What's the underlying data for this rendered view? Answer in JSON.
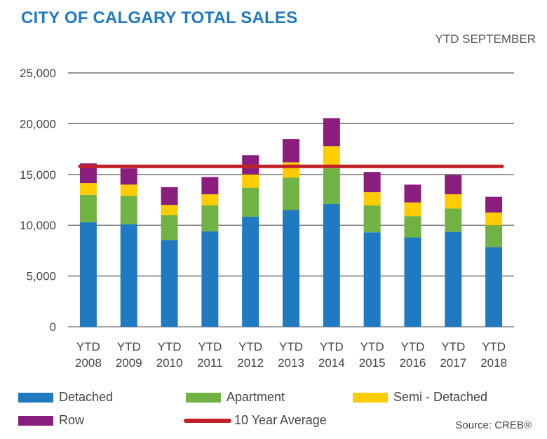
{
  "chart_data": {
    "type": "bar",
    "stacked": true,
    "title": "CITY OF CALGARY TOTAL SALES",
    "subtitle": "YTD  SEPTEMBER",
    "source": "Source: CREB®",
    "ylim": [
      0,
      25000
    ],
    "yticks": [
      {
        "value": 0,
        "label": "0"
      },
      {
        "value": 5000,
        "label": "5,000"
      },
      {
        "value": 10000,
        "label": "10,000"
      },
      {
        "value": 15000,
        "label": "15,000"
      },
      {
        "value": 20000,
        "label": "20,000"
      },
      {
        "value": 25000,
        "label": "25,000"
      }
    ],
    "grid": true,
    "legend_position": "bottom",
    "categories": [
      [
        "YTD",
        "2008"
      ],
      [
        "YTD",
        "2009"
      ],
      [
        "YTD",
        "2010"
      ],
      [
        "YTD",
        "2011"
      ],
      [
        "YTD",
        "2012"
      ],
      [
        "YTD",
        "2013"
      ],
      [
        "YTD",
        "2014"
      ],
      [
        "YTD",
        "2015"
      ],
      [
        "YTD",
        "2016"
      ],
      [
        "YTD",
        "2017"
      ],
      [
        "YTD",
        "2018"
      ]
    ],
    "series": [
      {
        "name": "Detached",
        "color": "#1f7ac2",
        "values": [
          10300,
          10100,
          8550,
          9400,
          10850,
          11500,
          12100,
          9300,
          8800,
          9350,
          7850
        ]
      },
      {
        "name": "Apartment",
        "color": "#70b344",
        "values": [
          2700,
          2800,
          2450,
          2550,
          2850,
          3200,
          3500,
          2650,
          2100,
          2300,
          2150
        ]
      },
      {
        "name": "Semi - Detached",
        "color": "#ffcc00",
        "values": [
          1150,
          1100,
          1000,
          1100,
          1300,
          1500,
          2200,
          1300,
          1350,
          1400,
          1250
        ]
      },
      {
        "name": "Row",
        "color": "#8a1e7e",
        "values": [
          1950,
          1600,
          1750,
          1700,
          1900,
          2300,
          2750,
          2000,
          1750,
          1900,
          1550
        ]
      }
    ],
    "reference_line": {
      "name": "10 Year Average",
      "value": 15800,
      "color": "#c12126"
    }
  }
}
